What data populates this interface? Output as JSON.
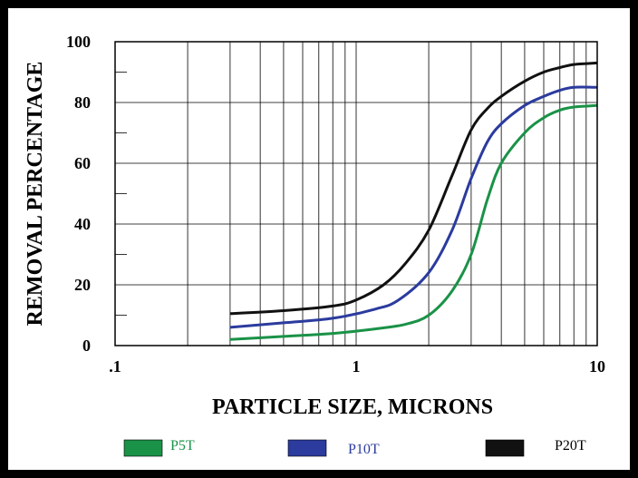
{
  "chart_data": {
    "type": "line",
    "xlabel": "PARTICLE SIZE, MICRONS",
    "ylabel": "REMOVAL PERCENTAGE",
    "x_scale": "log",
    "xlim": [
      0.1,
      10
    ],
    "ylim": [
      0,
      100
    ],
    "grid": true,
    "legend_position": "bottom",
    "x_tick_labels": [
      {
        "value": 0.1,
        "label": ".1"
      },
      {
        "value": 1,
        "label": "1"
      },
      {
        "value": 10,
        "label": "10"
      }
    ],
    "y_tick_labels": [
      {
        "value": 0,
        "label": "0"
      },
      {
        "value": 20,
        "label": "20"
      },
      {
        "value": 40,
        "label": "40"
      },
      {
        "value": 60,
        "label": "60"
      },
      {
        "value": 80,
        "label": "80"
      },
      {
        "value": 100,
        "label": "100"
      }
    ],
    "series": [
      {
        "name": "P5T",
        "color": "#1a9247",
        "points": [
          [
            0.3,
            2
          ],
          [
            0.5,
            3
          ],
          [
            0.8,
            4
          ],
          [
            1.2,
            5.5
          ],
          [
            1.6,
            7
          ],
          [
            2,
            10
          ],
          [
            2.5,
            18
          ],
          [
            3,
            30
          ],
          [
            3.5,
            48
          ],
          [
            4,
            60
          ],
          [
            5,
            70
          ],
          [
            6,
            75
          ],
          [
            7,
            77.5
          ],
          [
            8,
            78.5
          ],
          [
            10,
            79
          ]
        ]
      },
      {
        "name": "P10T",
        "color": "#2b3b9e",
        "points": [
          [
            0.3,
            6
          ],
          [
            0.5,
            7.5
          ],
          [
            0.8,
            9
          ],
          [
            1.2,
            12
          ],
          [
            1.5,
            15
          ],
          [
            2,
            24
          ],
          [
            2.5,
            38
          ],
          [
            3,
            55
          ],
          [
            3.5,
            67
          ],
          [
            4,
            73
          ],
          [
            5,
            79
          ],
          [
            6,
            82
          ],
          [
            7,
            84
          ],
          [
            8,
            85
          ],
          [
            10,
            85
          ]
        ]
      },
      {
        "name": "P20T",
        "color": "#111111",
        "points": [
          [
            0.3,
            10.5
          ],
          [
            0.5,
            11.5
          ],
          [
            0.8,
            13
          ],
          [
            1,
            15
          ],
          [
            1.3,
            20
          ],
          [
            1.6,
            27
          ],
          [
            2,
            38
          ],
          [
            2.5,
            56
          ],
          [
            3,
            71
          ],
          [
            3.5,
            78
          ],
          [
            4,
            82
          ],
          [
            5,
            87
          ],
          [
            6,
            90
          ],
          [
            7,
            91.5
          ],
          [
            8,
            92.5
          ],
          [
            10,
            93
          ]
        ]
      }
    ]
  }
}
